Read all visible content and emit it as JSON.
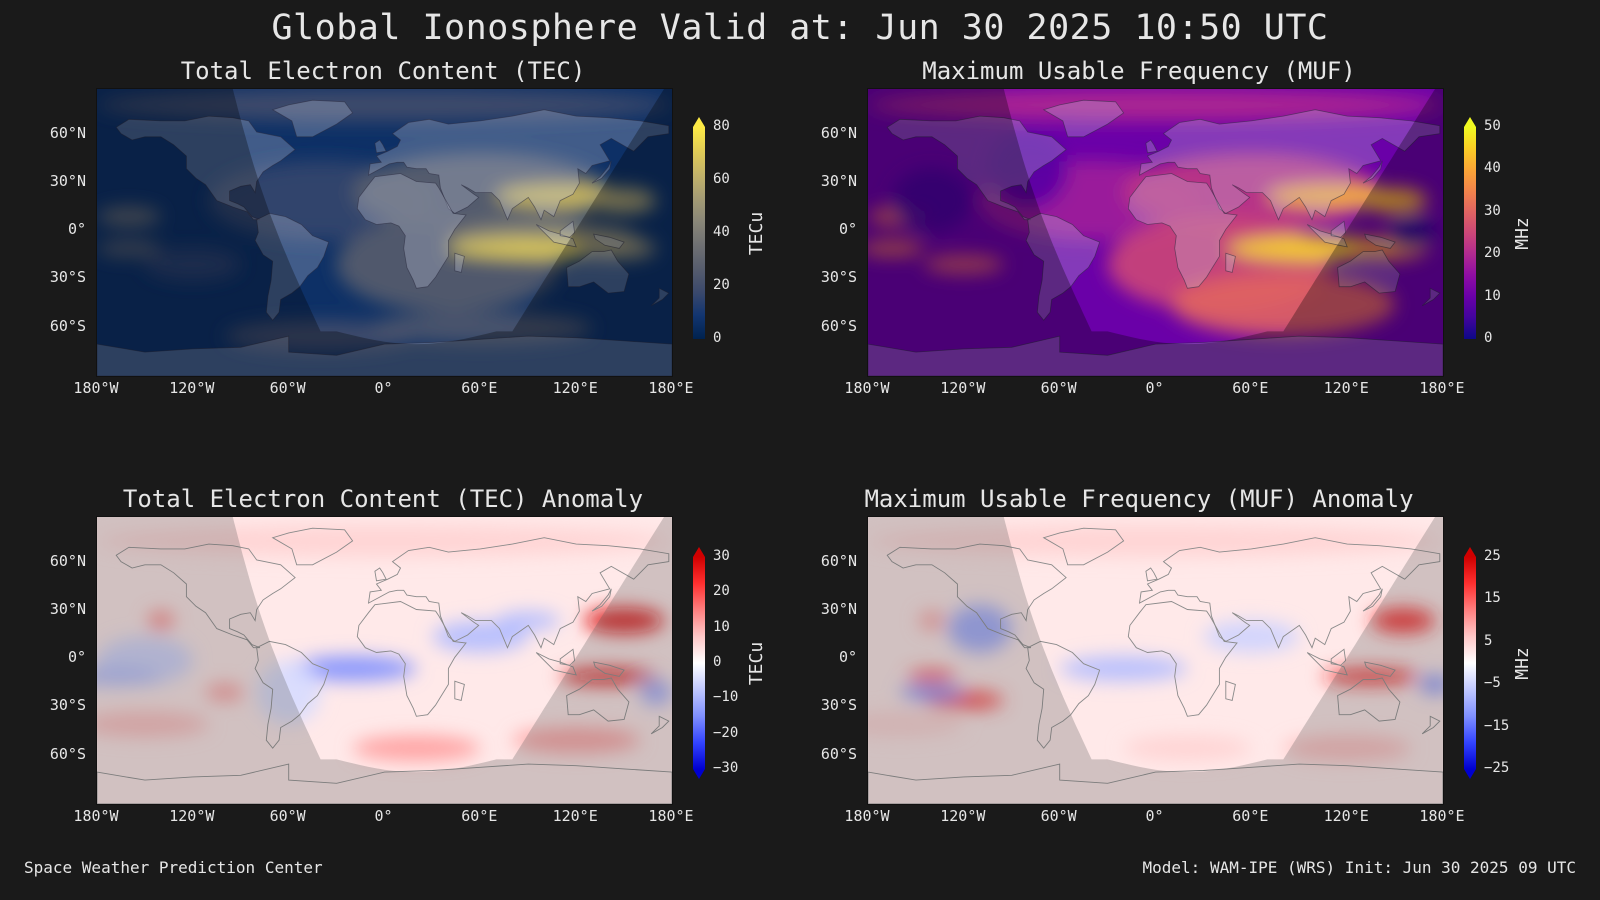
{
  "title": "Global Ionosphere Valid at: Jun 30 2025 10:50 UTC",
  "footer": {
    "left": "Space Weather Prediction Center",
    "right": "Model: WAM-IPE (WRS) Init: Jun 30 2025 09 UTC"
  },
  "lat_labels": [
    "60°N",
    "30°N",
    "0°",
    "30°S",
    "60°S"
  ],
  "lon_labels": [
    "180°W",
    "120°W",
    "60°W",
    "0°",
    "60°E",
    "120°E",
    "180°E"
  ],
  "panels": [
    {
      "title": "Total Electron Content (TEC)",
      "unit": "TECu",
      "ticks": [
        "80",
        "60",
        "40",
        "20",
        "0"
      ],
      "colormap": "cividis-style",
      "range": [
        0,
        80
      ]
    },
    {
      "title": "Maximum Usable Frequency (MUF)",
      "unit": "MHz",
      "ticks": [
        "50",
        "40",
        "30",
        "20",
        "10",
        "0"
      ],
      "colormap": "plasma-style",
      "range": [
        0,
        50
      ]
    },
    {
      "title": "Total Electron Content (TEC) Anomaly",
      "unit": "TECu",
      "ticks": [
        "30",
        "20",
        "10",
        "0",
        "−10",
        "−20",
        "−30"
      ],
      "colormap": "blue-white-red",
      "range": [
        -30,
        30
      ]
    },
    {
      "title": "Maximum Usable Frequency (MUF) Anomaly",
      "unit": "MHz",
      "ticks": [
        "25",
        "15",
        "5",
        "−5",
        "−15",
        "−25"
      ],
      "colormap": "blue-white-red",
      "range": [
        -25,
        25
      ]
    }
  ]
}
